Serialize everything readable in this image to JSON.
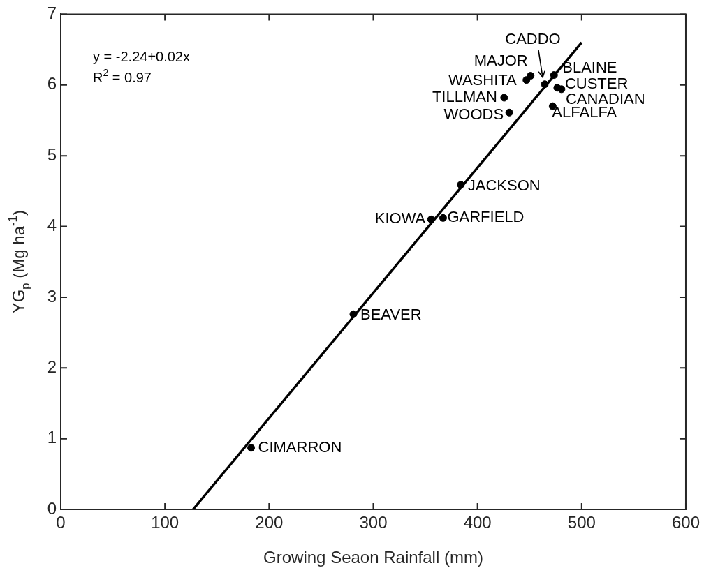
{
  "chart_data": {
    "type": "scatter",
    "xlabel": "Growing Seaon Rainfall (mm)",
    "ylabel": "YG$_{p}$ (Mg ha$^{-1}$)",
    "xlim": [
      0,
      600
    ],
    "xticks": [
      0,
      100,
      200,
      300,
      400,
      500,
      600
    ],
    "ylim": [
      0,
      7
    ],
    "yticks": [
      0,
      1,
      2,
      3,
      4,
      5,
      6,
      7
    ],
    "grid": false,
    "legend": false,
    "marker": "circle",
    "series": [
      {
        "type": "scatter",
        "color": "#000000",
        "x": [
          182.7,
          280.9,
          355.5,
          367,
          384,
          425.6,
          430.5,
          451,
          447,
          464.6,
          473.5,
          476.6,
          480.6,
          472.2
        ],
        "values": [
          0.87,
          2.76,
          4.1,
          4.12,
          4.59,
          5.82,
          5.61,
          6.13,
          6.07,
          6.01,
          6.14,
          5.96,
          5.94,
          5.7
        ]
      },
      {
        "type": "line",
        "color": "#000000",
        "marker": "none",
        "line_style": "solid",
        "x": [
          127,
          500
        ],
        "values": [
          0,
          6.6
        ]
      }
    ],
    "annotations": [
      "y = -2.24+0.02x",
      "R$^{2}$ = 0.97",
      {
        "text": "CIMARRON",
        "x": 182.7,
        "y": 0.87
      },
      {
        "text": "BEAVER",
        "x": 280.9,
        "y": 2.76
      },
      {
        "text": "KIOWA",
        "x": 355.5,
        "y": 4.1
      },
      {
        "text": "GARFIELD",
        "x": 367,
        "y": 4.12
      },
      {
        "text": "JACKSON",
        "x": 384,
        "y": 4.59
      },
      {
        "text": "TILLMAN",
        "x": 425.6,
        "y": 5.82
      },
      {
        "text": "WOODS",
        "x": 430.5,
        "y": 5.61
      },
      {
        "text": "MAJOR",
        "x": 451,
        "y": 6.13
      },
      {
        "text": "WASHITA",
        "x": 447,
        "y": 6.07
      },
      {
        "text": "CADDO",
        "x": 464.6,
        "y": 6.01
      },
      {
        "text": "BLAINE",
        "x": 473.5,
        "y": 6.14
      },
      {
        "text": "CUSTER",
        "x": 476.6,
        "y": 5.96
      },
      {
        "text": "CANADIAN",
        "x": 480.6,
        "y": 5.94
      },
      {
        "text": "ALFALFA",
        "x": 472.2,
        "y": 5.7
      }
    ]
  }
}
